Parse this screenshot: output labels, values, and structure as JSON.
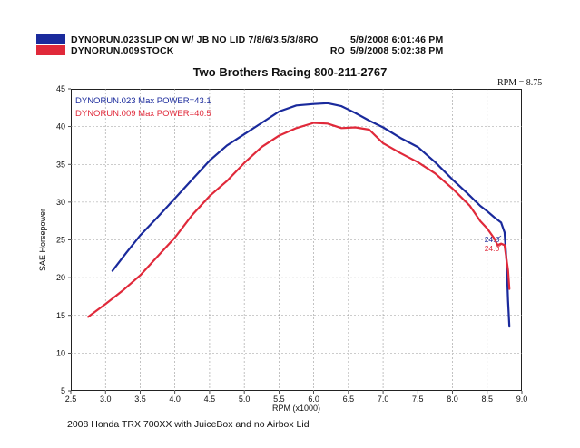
{
  "header": {
    "runs": [
      {
        "run": "DYNORUN.023",
        "desc": "SLIP ON W/ JB NO LID 7/8/6/3.5/3/8RO",
        "ro": "",
        "date": "5/9/2008 6:01:46 PM",
        "color": "#1a2a9c"
      },
      {
        "run": "DYNORUN.009",
        "desc": "STOCK",
        "ro": "RO",
        "date": "5/9/2008 5:02:38 PM",
        "color": "#e0293a"
      }
    ]
  },
  "chart_title": "Two Brothers Racing 800-211-2767",
  "rpm_corner_label": "RPM = 8.75",
  "caption": "2008 Honda TRX 700XX with JuiceBox and no Airbox Lid",
  "chart_data": {
    "type": "line",
    "title": "Two Brothers Racing 800-211-2767",
    "xlabel": "RPM (x1000)",
    "ylabel": "SAE Horsepower",
    "xlim": [
      2.5,
      9.0
    ],
    "ylim": [
      5,
      45
    ],
    "x_ticks": [
      "2.5",
      "3.0",
      "3.5",
      "4.0",
      "4.5",
      "5.0",
      "5.5",
      "6.0",
      "6.5",
      "7.0",
      "7.5",
      "8.0",
      "8.5",
      "9.0"
    ],
    "y_ticks": [
      "5",
      "10",
      "15",
      "20",
      "25",
      "30",
      "35",
      "40",
      "45"
    ],
    "grid": true,
    "legend_placement": "top-left",
    "series": [
      {
        "name": "DYNORUN.023",
        "legend_text": "DYNORUN.023  Max POWER=43.1",
        "color": "#1a2a9c",
        "end_label": "24.8",
        "x": [
          3.1,
          3.3,
          3.5,
          3.75,
          4.0,
          4.25,
          4.5,
          4.75,
          5.0,
          5.25,
          5.5,
          5.75,
          6.0,
          6.2,
          6.4,
          6.6,
          6.8,
          7.0,
          7.25,
          7.5,
          7.75,
          8.0,
          8.2,
          8.4,
          8.5,
          8.6,
          8.7,
          8.75,
          8.78,
          8.8,
          8.82
        ],
        "y": [
          20.9,
          23.3,
          25.6,
          28.0,
          30.5,
          33.0,
          35.5,
          37.5,
          39.0,
          40.5,
          42.0,
          42.8,
          43.0,
          43.1,
          42.7,
          41.8,
          40.8,
          39.9,
          38.5,
          37.3,
          35.3,
          33.0,
          31.3,
          29.5,
          28.8,
          28.0,
          27.3,
          26.0,
          22.0,
          17.0,
          13.5
        ]
      },
      {
        "name": "DYNORUN.009",
        "legend_text": "DYNORUN.009  Max POWER=40.5",
        "color": "#e0293a",
        "end_label": "24.0",
        "x": [
          2.75,
          3.0,
          3.25,
          3.5,
          3.75,
          4.0,
          4.25,
          4.5,
          4.75,
          5.0,
          5.25,
          5.5,
          5.75,
          6.0,
          6.2,
          6.4,
          6.6,
          6.8,
          7.0,
          7.25,
          7.5,
          7.75,
          8.0,
          8.25,
          8.4,
          8.5,
          8.6,
          8.65,
          8.7,
          8.75,
          8.8,
          8.82
        ],
        "y": [
          14.8,
          16.5,
          18.3,
          20.3,
          22.8,
          25.3,
          28.3,
          30.8,
          32.8,
          35.2,
          37.3,
          38.8,
          39.8,
          40.5,
          40.4,
          39.8,
          39.9,
          39.6,
          37.8,
          36.5,
          35.3,
          33.8,
          31.8,
          29.5,
          27.5,
          26.5,
          25.2,
          24.3,
          24.5,
          24.3,
          21.0,
          18.5
        ]
      }
    ]
  }
}
